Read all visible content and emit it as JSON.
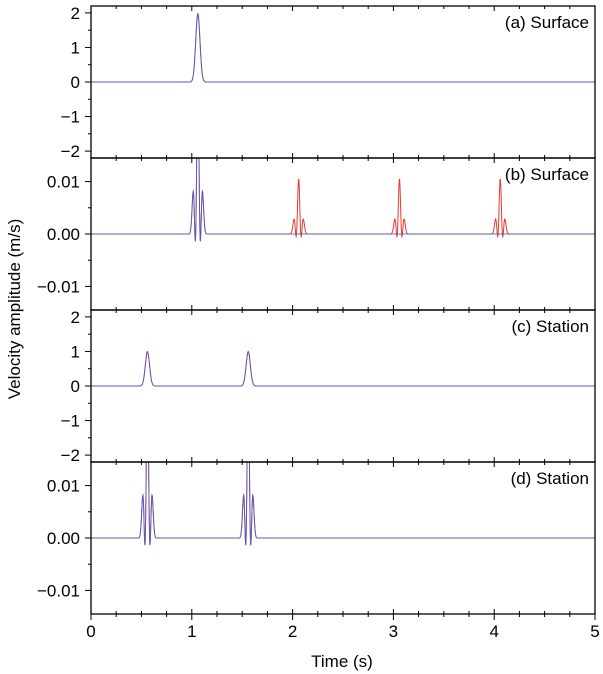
{
  "chart_data": {
    "type": "line",
    "shared_x_axis": {
      "label": "Time (s)",
      "range": [
        0,
        5
      ],
      "ticks": [
        0,
        1,
        2,
        3,
        4,
        5
      ],
      "tick_labels": [
        "0",
        "1",
        "2",
        "3",
        "4",
        "5"
      ]
    },
    "ylabel": "Velocity amplitude (m/s)",
    "colors": {
      "red": "#e8382e",
      "blue": "#3a62d9",
      "purple": "#6a2a78"
    },
    "panels": [
      {
        "label": "(a) Surface",
        "ylim": [
          -2.2,
          2.2
        ],
        "ticks": [
          -2,
          -1,
          0,
          1,
          2
        ],
        "tick_labels": [
          "−2",
          "−1",
          "0",
          "1",
          "2"
        ],
        "series": [
          {
            "color": "red",
            "kind": "gaussian",
            "pulses": [
              {
                "t": 1.06,
                "amp": 1.98,
                "width": 0.03
              }
            ]
          },
          {
            "color": "blue",
            "kind": "gaussian",
            "pulses": [
              {
                "t": 1.06,
                "amp": 1.94,
                "width": 0.03
              }
            ]
          }
        ]
      },
      {
        "label": "(b) Surface",
        "ylim": [
          -0.0145,
          0.0145
        ],
        "ticks": [
          -0.01,
          0,
          0.01
        ],
        "tick_labels": [
          "−0.01",
          "0.00",
          "0.01"
        ],
        "series": [
          {
            "color": "red",
            "kind": "wavelet",
            "pulses": [
              {
                "t": 1.06,
                "amp": 0.03,
                "width": 0.03
              },
              {
                "t": 2.06,
                "amp": 0.0105,
                "width": 0.03
              },
              {
                "t": 3.06,
                "amp": 0.0105,
                "width": 0.03
              },
              {
                "t": 4.06,
                "amp": 0.0105,
                "width": 0.03
              }
            ]
          },
          {
            "color": "blue",
            "kind": "wavelet",
            "pulses": [
              {
                "t": 1.06,
                "amp": 0.03,
                "width": 0.03
              }
            ]
          }
        ]
      },
      {
        "label": "(c) Station",
        "ylim": [
          -2.2,
          2.2
        ],
        "ticks": [
          -2,
          -1,
          0,
          1,
          2
        ],
        "tick_labels": [
          "−2",
          "−1",
          "0",
          "1",
          "2"
        ],
        "series": [
          {
            "color": "red",
            "kind": "gaussian",
            "pulses": [
              {
                "t": 0.56,
                "amp": 1.0,
                "width": 0.03
              },
              {
                "t": 1.56,
                "amp": 1.0,
                "width": 0.03
              }
            ]
          },
          {
            "color": "blue",
            "kind": "gaussian",
            "pulses": [
              {
                "t": 0.56,
                "amp": 0.97,
                "width": 0.03
              },
              {
                "t": 1.56,
                "amp": 0.97,
                "width": 0.03
              }
            ]
          }
        ]
      },
      {
        "label": "(d) Station",
        "ylim": [
          -0.0145,
          0.0145
        ],
        "ticks": [
          -0.01,
          0,
          0.01
        ],
        "tick_labels": [
          "−0.01",
          "0.00",
          "0.01"
        ],
        "series": [
          {
            "color": "red",
            "kind": "wavelet",
            "pulses": [
              {
                "t": 0.56,
                "amp": 0.03,
                "width": 0.03
              },
              {
                "t": 1.56,
                "amp": 0.03,
                "width": 0.03
              }
            ]
          },
          {
            "color": "blue",
            "kind": "wavelet",
            "pulses": [
              {
                "t": 0.56,
                "amp": 0.03,
                "width": 0.03
              },
              {
                "t": 1.56,
                "amp": 0.03,
                "width": 0.03
              }
            ]
          }
        ]
      }
    ]
  }
}
